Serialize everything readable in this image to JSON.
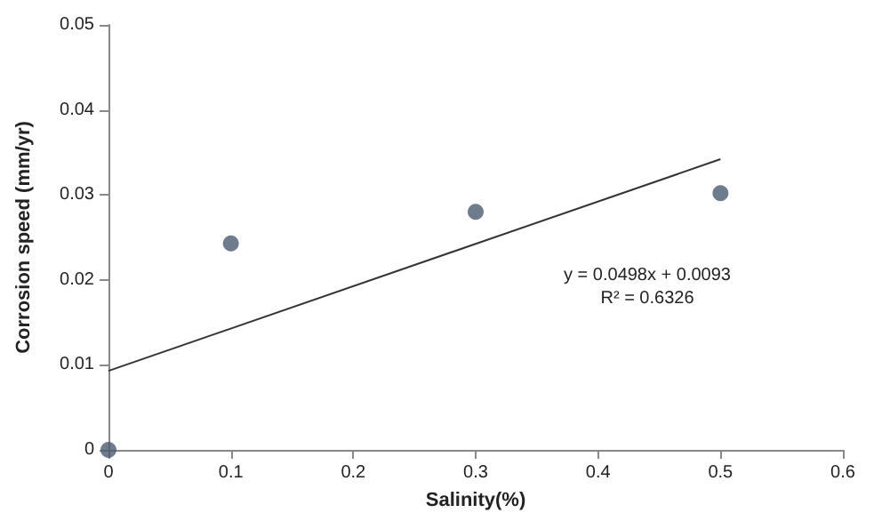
{
  "chart_data": {
    "type": "scatter",
    "xlabel": "Salinity(%)",
    "ylabel": "Corrosion speed (mm/yr)",
    "xlim": [
      0,
      0.6
    ],
    "xticks": [
      0,
      0.1,
      0.2,
      0.3,
      0.4,
      0.5,
      0.6
    ],
    "ylim": [
      0,
      0.05
    ],
    "yticks": [
      0,
      0.01,
      0.02,
      0.03,
      0.04,
      0.05
    ],
    "marker": "circle",
    "series": [
      {
        "color": "#4a5b70",
        "x": [
          0,
          0.1,
          0.3,
          0.5
        ],
        "values": [
          0,
          0.0243,
          0.028,
          0.0302
        ]
      },
      {
        "type": "line",
        "color": "#333333",
        "x": [
          0,
          0.5
        ],
        "values": [
          0.0093,
          0.0342
        ],
        "marker": "none"
      }
    ],
    "annotations": [
      "y = 0.0498x + 0.0093",
      "R² = 0.6326"
    ]
  }
}
